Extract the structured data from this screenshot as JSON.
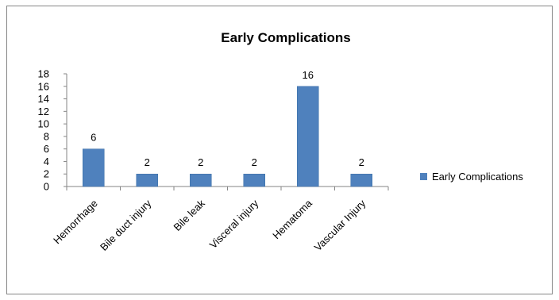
{
  "chart_data": {
    "type": "bar",
    "title": "Early Complications",
    "categories": [
      "Hemorrhage",
      "Bile duct injury",
      "Bile leak",
      "Visceral injury",
      "Hematoma",
      "Vascular Injury"
    ],
    "series": [
      {
        "name": "Early Complications",
        "values": [
          6,
          2,
          2,
          2,
          16,
          2
        ]
      }
    ],
    "yticks": [
      "0",
      "2",
      "4",
      "6",
      "8",
      "10",
      "12",
      "14",
      "16",
      "18"
    ],
    "ylim": [
      0,
      18
    ],
    "xlabel": "",
    "ylabel": "",
    "grid": false,
    "legend": "right",
    "colors": {
      "bar": "#4f81bd",
      "bar_edge": "#3a6ea5",
      "axis": "#868686"
    }
  }
}
